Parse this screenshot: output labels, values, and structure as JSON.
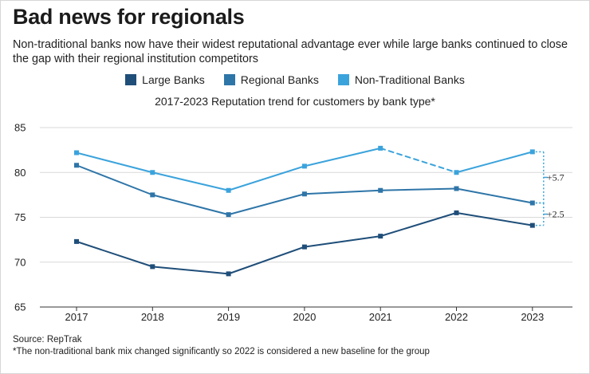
{
  "title": "Bad news for regionals",
  "subtitle": "Non-traditional banks now have their widest reputational advantage ever while large banks continued to close the gap with their regional institution competitors",
  "legend": [
    {
      "label": "Large Banks",
      "color": "#1f4e79"
    },
    {
      "label": "Regional Banks",
      "color": "#2e75a8"
    },
    {
      "label": "Non-Traditional Banks",
      "color": "#3ba3dc"
    }
  ],
  "chart_data": {
    "type": "line",
    "title": "2017-2023 Reputation trend for customers by bank type*",
    "categories": [
      "2017",
      "2018",
      "2019",
      "2020",
      "2021",
      "2022",
      "2023"
    ],
    "ylim": [
      65,
      85
    ],
    "yticks": [
      65,
      70,
      75,
      80,
      85
    ],
    "ytick_labels": [
      "65",
      "70",
      "75",
      "80",
      "85"
    ],
    "series": [
      {
        "name": "Large Banks",
        "color": "#1f4e79",
        "values": [
          72.3,
          69.5,
          68.7,
          71.7,
          72.9,
          75.5,
          74.1
        ]
      },
      {
        "name": "Regional Banks",
        "color": "#2e75a8",
        "values": [
          80.8,
          77.5,
          75.3,
          77.6,
          78.0,
          78.2,
          76.6
        ]
      },
      {
        "name": "Non-Traditional Banks",
        "color": "#3ba3dc",
        "values": [
          82.2,
          80.0,
          78.0,
          80.7,
          82.7,
          80.0,
          82.3
        ],
        "dashed_segment": [
          "2021",
          "2022"
        ]
      }
    ],
    "annotations": [
      {
        "text": "+5.7",
        "from_series": "Non-Traditional Banks",
        "to_series": "Regional Banks"
      },
      {
        "text": "+2.5",
        "from_series": "Regional Banks",
        "to_series": "Large Banks"
      }
    ]
  },
  "footer": {
    "source": "Source: RepTrak",
    "note": "*The non-traditional bank mix changed significantly so 2022 is considered a new baseline for the group"
  }
}
